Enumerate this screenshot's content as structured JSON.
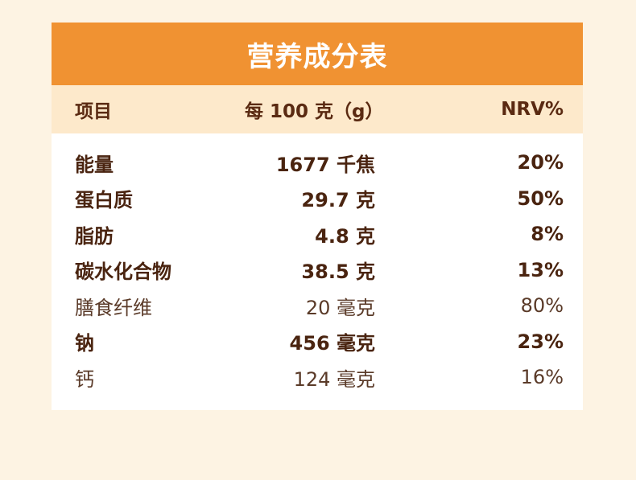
{
  "title": "营养成分表",
  "colors": {
    "header_bg": "#f09232",
    "subheader_bg": "#fde9cb",
    "page_bg": "#fdf3e3",
    "text": "#4a2410"
  },
  "columns": [
    "项目",
    "每 100 克（g）",
    "NRV%"
  ],
  "rows": [
    {
      "name": "能量",
      "amount": "1677 千焦",
      "nrv": "20%",
      "bold": true
    },
    {
      "name": "蛋白质",
      "amount": "29.7 克",
      "nrv": "50%",
      "bold": true
    },
    {
      "name": "脂肪",
      "amount": "4.8 克",
      "nrv": "8%",
      "bold": true
    },
    {
      "name": "碳水化合物",
      "amount": "38.5 克",
      "nrv": "13%",
      "bold": true
    },
    {
      "name": "膳食纤维",
      "amount": "20 毫克",
      "nrv": "80%",
      "bold": false
    },
    {
      "name": "钠",
      "amount": "456 毫克",
      "nrv": "23%",
      "bold": true
    },
    {
      "name": "钙",
      "amount": "124 毫克",
      "nrv": "16%",
      "bold": false
    }
  ]
}
